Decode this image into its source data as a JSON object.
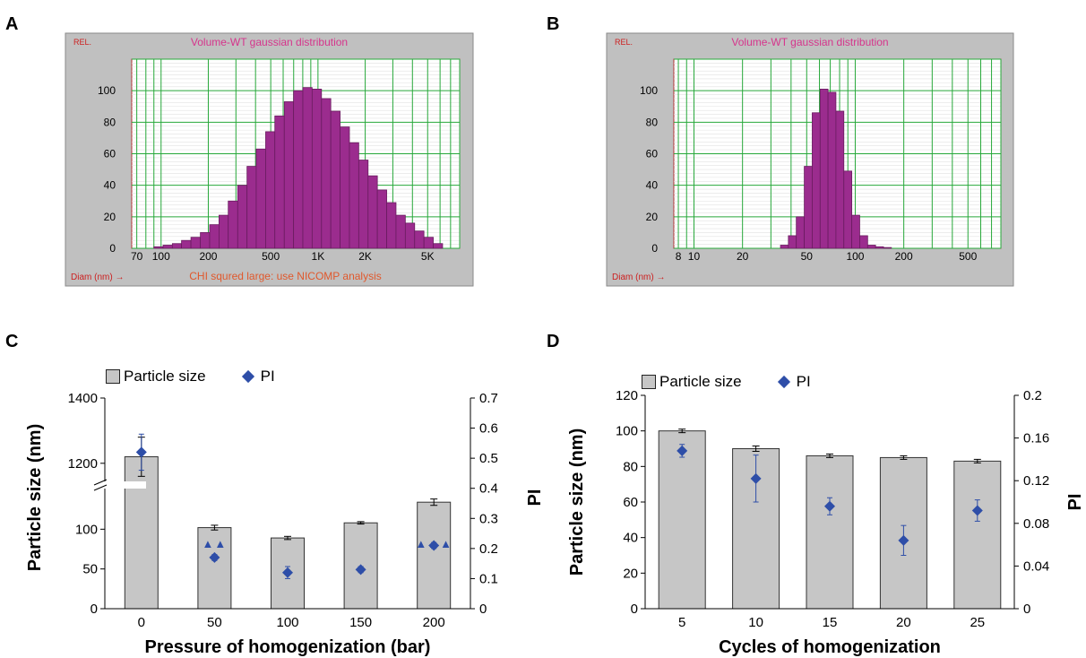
{
  "panels": {
    "a": "A",
    "b": "B",
    "c": "C",
    "d": "D"
  },
  "colors": {
    "bar": "#9b2c8e",
    "bar_edge": "#6a1c60",
    "grid": "#27a83a",
    "nicomp_bg": "#c0c0c0",
    "title_text": "#d6348c",
    "footer_text": "#e0582c",
    "bar_gray": "#c6c6c6",
    "marker": "#2e4ea8"
  },
  "chart_data": [
    {
      "id": "A",
      "type": "bar",
      "title": "Volume-WT gaussian distribution",
      "corner_label": "REL.",
      "xlabel": "Diam (nm) →",
      "footer": "CHI squred large: use NICOMP analysis",
      "x_scale": "log",
      "xlim": [
        65,
        8000
      ],
      "ylim": [
        0,
        120
      ],
      "yticks": [
        "0",
        "20",
        "40",
        "60",
        "80",
        "100"
      ],
      "xticks": [
        {
          "v": 70,
          "l": "70"
        },
        {
          "v": 100,
          "l": "100"
        },
        {
          "v": 200,
          "l": "200"
        },
        {
          "v": 500,
          "l": "500"
        },
        {
          "v": 1000,
          "l": "1K"
        },
        {
          "v": 2000,
          "l": "2K"
        },
        {
          "v": 5000,
          "l": "5K"
        }
      ],
      "bin_edges": [
        90,
        103,
        118,
        135,
        155,
        178,
        204,
        234,
        268,
        308,
        353,
        404,
        464,
        531,
        610,
        699,
        801,
        918,
        1053,
        1207,
        1384,
        1587,
        1819,
        2086,
        2391,
        2742,
        3143,
        3604,
        4132,
        4737,
        5431,
        6226
      ],
      "values": [
        1,
        2,
        3,
        5,
        7,
        10,
        15,
        21,
        30,
        40,
        52,
        63,
        74,
        84,
        93,
        100,
        102,
        101,
        95,
        87,
        77,
        67,
        56,
        46,
        37,
        29,
        21,
        16,
        11,
        7,
        3
      ]
    },
    {
      "id": "B",
      "type": "bar",
      "title": "Volume-WT gaussian distribution",
      "corner_label": "REL.",
      "xlabel": "Diam (nm) →",
      "x_scale": "log",
      "xlim": [
        7.5,
        800
      ],
      "ylim": [
        0,
        120
      ],
      "yticks": [
        "0",
        "20",
        "40",
        "60",
        "80",
        "100"
      ],
      "xticks": [
        {
          "v": 8,
          "l": "8"
        },
        {
          "v": 10,
          "l": "10"
        },
        {
          "v": 20,
          "l": "20"
        },
        {
          "v": 50,
          "l": "50"
        },
        {
          "v": 100,
          "l": "100"
        },
        {
          "v": 200,
          "l": "200"
        },
        {
          "v": 500,
          "l": "500"
        }
      ],
      "bin_edges": [
        34.4,
        38.5,
        43.1,
        48.3,
        54.1,
        60.6,
        67.8,
        75.9,
        85.0,
        95.2,
        106.6,
        119.4,
        133.7,
        149.7,
        167.6
      ],
      "values": [
        2,
        8,
        20,
        52,
        86,
        101,
        99,
        87,
        49,
        21,
        8,
        2,
        1,
        0.5
      ]
    },
    {
      "id": "C",
      "type": "bar",
      "legend": [
        "Particle size",
        "PI"
      ],
      "xlabel": "Pressure of homogenization (bar)",
      "ylabel": "Particle size (nm)",
      "y2label": "PI",
      "categories": [
        "0",
        "50",
        "100",
        "150",
        "200"
      ],
      "series": [
        {
          "name": "Particle size",
          "values": [
            1220,
            102,
            89,
            108,
            134
          ],
          "errors": [
            60,
            3,
            2,
            1.5,
            4
          ]
        },
        {
          "name": "PI",
          "axis": "right",
          "values": [
            0.52,
            0.17,
            0.12,
            0.13,
            0.21
          ],
          "errors": [
            0.06,
            0.01,
            0.02,
            0.01,
            0.01
          ]
        }
      ],
      "annotations": [
        {
          "category": "50",
          "symbol": "▲▲"
        },
        {
          "category": "200",
          "symbol": "▲▲▲"
        }
      ],
      "y_axis": {
        "broken": true,
        "lower": [
          0,
          150
        ],
        "upper": [
          1150,
          1400
        ],
        "ticks": [
          "0",
          "50",
          "100",
          "1200",
          "1400"
        ]
      },
      "y2lim": [
        0,
        0.7
      ],
      "y2ticks": [
        "0",
        "0.1",
        "0.2",
        "0.3",
        "0.4",
        "0.5",
        "0.6",
        "0.7"
      ]
    },
    {
      "id": "D",
      "type": "bar",
      "legend": [
        "Particle size",
        "PI"
      ],
      "xlabel": "Cycles of homogenization",
      "ylabel": "Particle size (nm)",
      "y2label": "PI",
      "categories": [
        "5",
        "10",
        "15",
        "20",
        "25"
      ],
      "series": [
        {
          "name": "Particle size",
          "values": [
            100,
            90,
            86,
            85,
            83
          ],
          "errors": [
            1,
            1.5,
            1,
            1,
            1
          ]
        },
        {
          "name": "PI",
          "axis": "right",
          "values": [
            0.148,
            0.122,
            0.096,
            0.064,
            0.092
          ],
          "errors": [
            0.006,
            0.022,
            0.008,
            0.014,
            0.01
          ]
        }
      ],
      "ylim": [
        0,
        120
      ],
      "yticks": [
        "0",
        "20",
        "40",
        "60",
        "80",
        "100",
        "120"
      ],
      "y2lim": [
        0,
        0.2
      ],
      "y2ticks": [
        "0",
        "0.04",
        "0.08",
        "0.12",
        "0.16",
        "0.2"
      ]
    }
  ]
}
